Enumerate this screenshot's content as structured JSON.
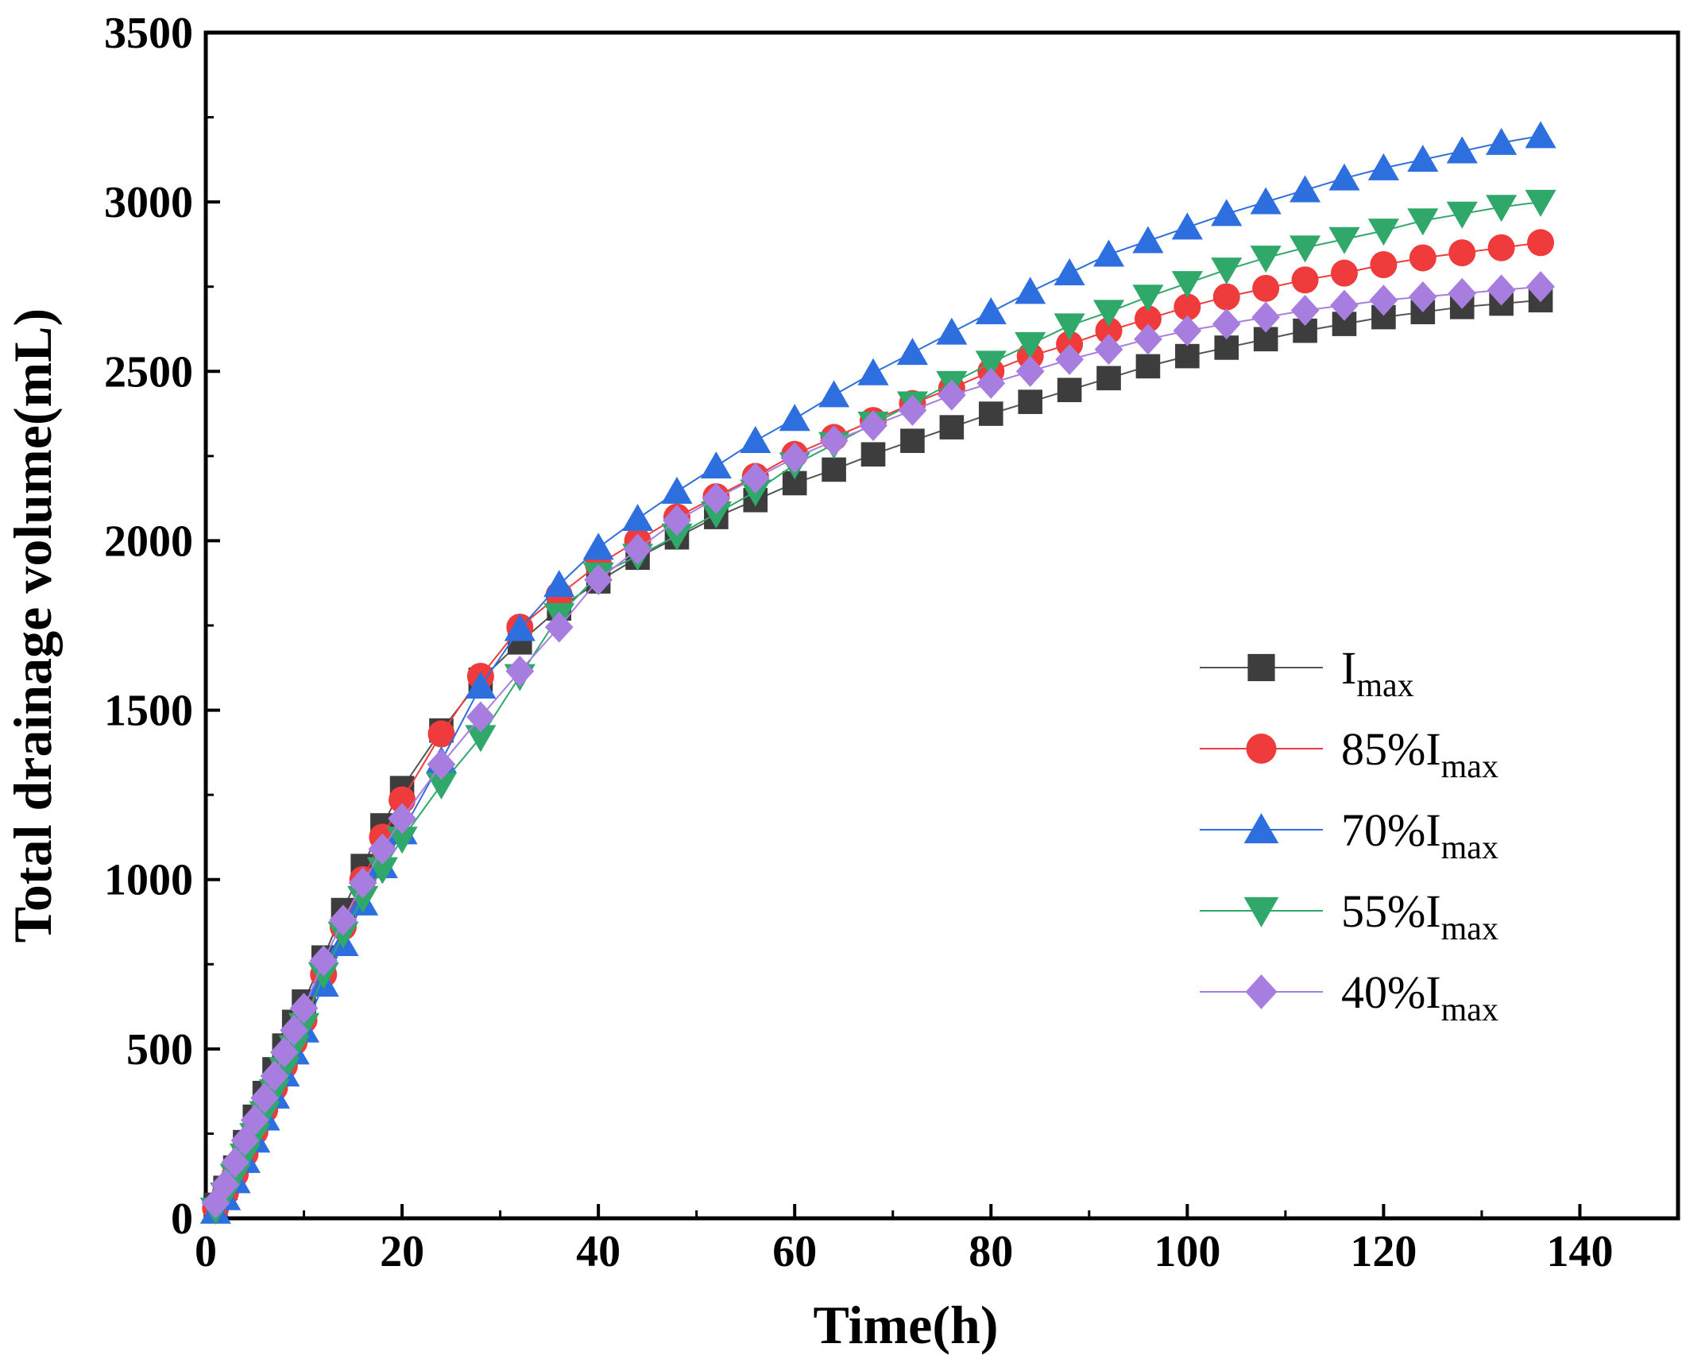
{
  "chart_data": {
    "type": "line",
    "title": "",
    "xlabel": "Time(h)",
    "ylabel": "Total drainage volume(mL)",
    "xlim": [
      0,
      150
    ],
    "ylim": [
      0,
      3500
    ],
    "xticks": [
      0,
      20,
      40,
      60,
      80,
      100,
      120,
      140
    ],
    "yticks": [
      0,
      500,
      1000,
      1500,
      2000,
      2500,
      3000,
      3500
    ],
    "grid": false,
    "legend_position": "center-right",
    "x": [
      1,
      2,
      3,
      4,
      5,
      6,
      7,
      8,
      9,
      10,
      12,
      14,
      16,
      18,
      20,
      24,
      28,
      32,
      36,
      40,
      44,
      48,
      52,
      56,
      60,
      64,
      68,
      72,
      76,
      80,
      84,
      88,
      92,
      96,
      100,
      104,
      108,
      112,
      116,
      120,
      124,
      128,
      132,
      136
    ],
    "series": [
      {
        "name": "I",
        "subscript": "max",
        "marker": "square",
        "color": "#3d3d3d",
        "line_color": "#555555",
        "values": [
          40,
          90,
          150,
          225,
          300,
          370,
          440,
          510,
          580,
          640,
          770,
          910,
          1040,
          1160,
          1270,
          1440,
          1590,
          1700,
          1800,
          1880,
          1950,
          2010,
          2070,
          2120,
          2170,
          2210,
          2255,
          2295,
          2335,
          2375,
          2410,
          2445,
          2480,
          2515,
          2545,
          2570,
          2595,
          2620,
          2640,
          2660,
          2675,
          2690,
          2700,
          2710
        ]
      },
      {
        "name": "85%I",
        "subscript": "max",
        "marker": "circle",
        "color": "#ef3b3b",
        "line_color": "#ef3b3b",
        "values": [
          30,
          75,
          130,
          190,
          255,
          320,
          385,
          450,
          520,
          585,
          720,
          860,
          1000,
          1125,
          1235,
          1430,
          1600,
          1745,
          1840,
          1930,
          2000,
          2070,
          2130,
          2190,
          2255,
          2305,
          2355,
          2405,
          2450,
          2500,
          2545,
          2580,
          2620,
          2655,
          2690,
          2720,
          2745,
          2770,
          2790,
          2815,
          2835,
          2850,
          2865,
          2880
        ]
      },
      {
        "name": "70%I",
        "subscript": "max",
        "marker": "triangle-up",
        "color": "#2e6fe0",
        "line_color": "#2e6fe0",
        "values": [
          20,
          60,
          110,
          170,
          230,
          295,
          360,
          425,
          490,
          555,
          690,
          810,
          930,
          1040,
          1140,
          1350,
          1570,
          1740,
          1870,
          1980,
          2065,
          2145,
          2220,
          2295,
          2360,
          2430,
          2495,
          2555,
          2615,
          2675,
          2735,
          2790,
          2845,
          2885,
          2925,
          2965,
          3000,
          3035,
          3070,
          3100,
          3125,
          3150,
          3175,
          3195
        ]
      },
      {
        "name": "55%I",
        "subscript": "max",
        "marker": "triangle-down",
        "color": "#2fa86a",
        "line_color": "#2fa86a",
        "values": [
          25,
          70,
          125,
          185,
          245,
          310,
          375,
          440,
          505,
          570,
          720,
          840,
          945,
          1030,
          1120,
          1280,
          1420,
          1600,
          1780,
          1900,
          1955,
          2015,
          2080,
          2145,
          2225,
          2285,
          2345,
          2405,
          2465,
          2525,
          2580,
          2635,
          2675,
          2720,
          2760,
          2800,
          2835,
          2865,
          2890,
          2915,
          2945,
          2965,
          2985,
          3000
        ]
      },
      {
        "name": "40%I",
        "subscript": "max",
        "marker": "diamond",
        "color": "#a77ee0",
        "line_color": "#a77ee0",
        "values": [
          45,
          100,
          165,
          230,
          290,
          355,
          420,
          490,
          555,
          620,
          760,
          880,
          990,
          1090,
          1180,
          1340,
          1480,
          1615,
          1745,
          1885,
          1975,
          2060,
          2125,
          2185,
          2245,
          2295,
          2340,
          2385,
          2430,
          2465,
          2500,
          2535,
          2565,
          2595,
          2620,
          2640,
          2660,
          2680,
          2695,
          2710,
          2720,
          2730,
          2740,
          2750
        ]
      }
    ]
  }
}
